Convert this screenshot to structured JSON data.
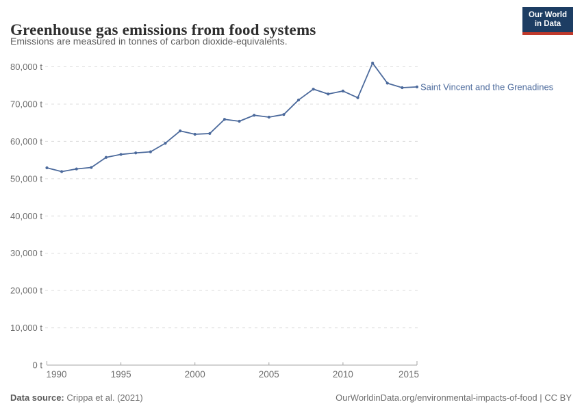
{
  "header": {
    "title": "Greenhouse gas emissions from food systems",
    "subtitle": "Emissions are measured in tonnes of carbon dioxide-equivalents.",
    "logo": {
      "line1": "Our World",
      "line2": "in Data",
      "bg_color": "#1d3d63",
      "accent_color": "#c0392b"
    }
  },
  "chart_data": {
    "type": "line",
    "title": "Greenhouse gas emissions from food systems",
    "xlabel": "",
    "ylabel": "",
    "ylim": [
      0,
      80000
    ],
    "ytick_step": 10000,
    "yticks_labels": [
      "0 t",
      "10,000 t",
      "20,000 t",
      "30,000 t",
      "40,000 t",
      "50,000 t",
      "60,000 t",
      "70,000 t",
      "80,000 t"
    ],
    "xticks": [
      1990,
      1995,
      2000,
      2005,
      2010,
      2015
    ],
    "grid": "horizontal-dashed",
    "legend_position": "end-of-line-label",
    "series": [
      {
        "name": "Saint Vincent and the Grenadines",
        "color": "#4C6A9C",
        "x": [
          1990,
          1991,
          1992,
          1993,
          1994,
          1995,
          1996,
          1997,
          1998,
          1999,
          2000,
          2001,
          2002,
          2003,
          2004,
          2005,
          2006,
          2007,
          2008,
          2009,
          2010,
          2011,
          2012,
          2013,
          2014,
          2015
        ],
        "values": [
          52900,
          51900,
          52600,
          53000,
          55700,
          56500,
          56900,
          57200,
          59500,
          62800,
          61900,
          62100,
          65900,
          65400,
          67000,
          66500,
          67200,
          71100,
          74000,
          72700,
          73500,
          71700,
          81000,
          75600,
          74400,
          74600
        ]
      }
    ]
  },
  "footer": {
    "source_label": "Data source:",
    "source_value": " Crippa et al. (2021)",
    "right_text": "OurWorldinData.org/environmental-impacts-of-food | CC BY"
  },
  "colors": {
    "line": "#4C6A9C",
    "gridline": "#dcdcdc",
    "axis": "#a3a3a3",
    "tick_label": "#6e6e6e",
    "title": "#2f2f2f",
    "subtitle": "#5f5f5f"
  }
}
